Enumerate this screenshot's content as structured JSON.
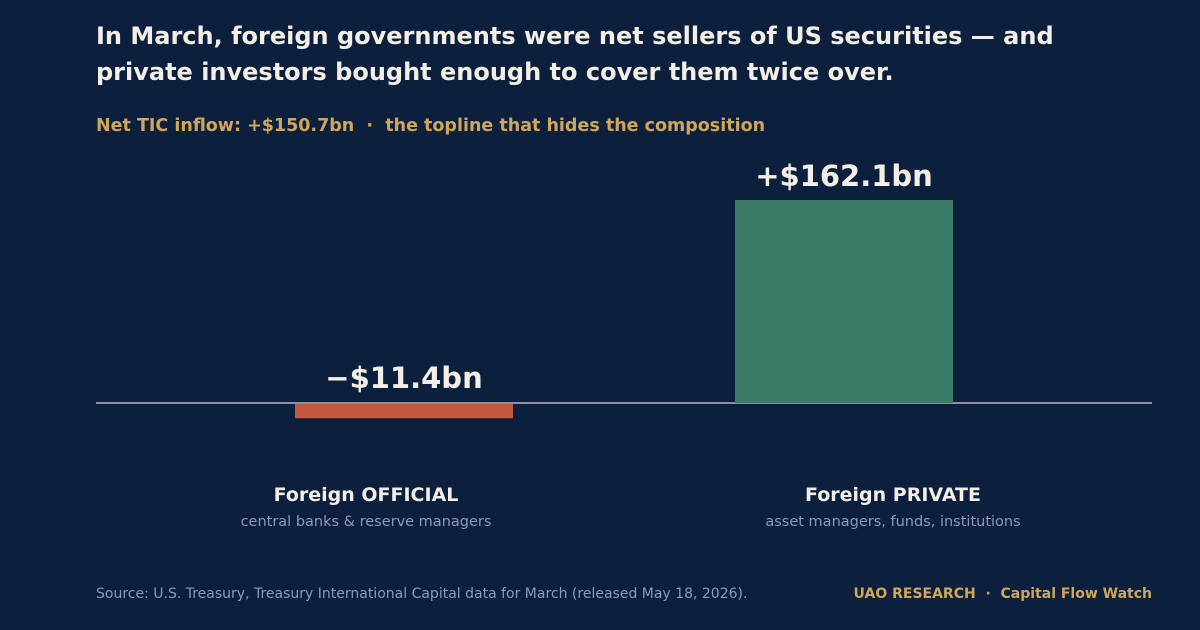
{
  "header": {
    "title": "In March, foreign governments were net sellers of US securities — and private investors bought enough to cover them twice over.",
    "subtitle": "Net TIC inflow: +$150.7bn  ·  the topline that hides the composition"
  },
  "chart_data": {
    "type": "bar",
    "categories": [
      "Foreign OFFICIAL",
      "Foreign PRIVATE"
    ],
    "category_descriptions": [
      "central banks & reserve managers",
      "asset managers, funds, institutions"
    ],
    "values": [
      -11.4,
      162.1
    ],
    "value_labels": [
      "−$11.4bn",
      "+$162.1bn"
    ],
    "colors": [
      "#c2583f",
      "#3d7b69"
    ],
    "unit": "$bn",
    "ylim": [
      -25,
      162.1
    ],
    "grid": false,
    "legend": "none"
  },
  "footer": {
    "source": "Source: U.S. Treasury, Treasury International Capital data for March (released May 18, 2026).",
    "brand": "UAO RESEARCH  ·  Capital Flow Watch"
  },
  "colors": {
    "background": "#0c1f3c",
    "title": "#f3efe6",
    "accent": "#d0a75a",
    "muted": "#8c9bb4",
    "baseline": "#8a93a3"
  }
}
